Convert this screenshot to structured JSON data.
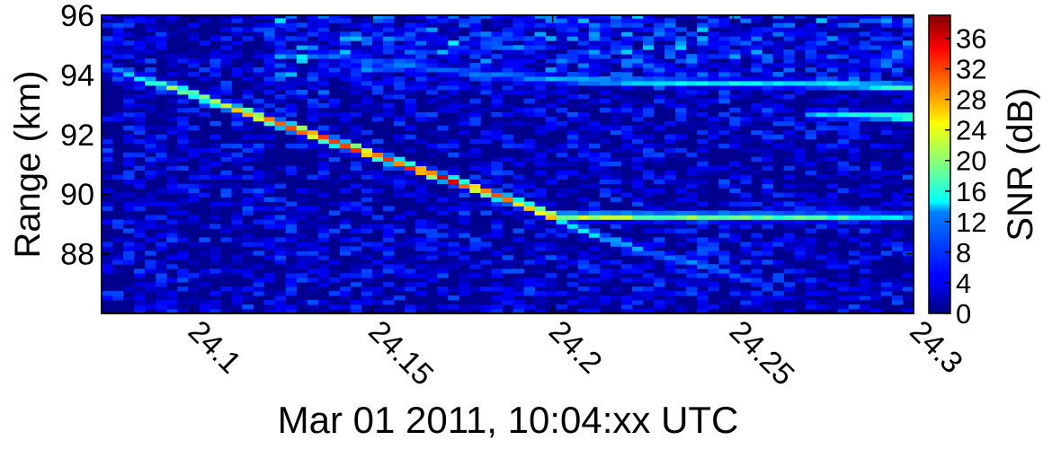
{
  "chart_data": {
    "type": "heatmap",
    "title": "",
    "xlabel": "Mar 01 2011, 10:04:xx UTC",
    "ylabel": "Range (km)",
    "xlim": [
      24.075,
      24.3
    ],
    "ylim": [
      86.0,
      96.0
    ],
    "x_ticks": [
      24.1,
      24.15,
      24.2,
      24.25,
      24.3
    ],
    "x_tick_labels": [
      "24.1",
      "24.15",
      "24.2",
      "24.25",
      "24.3"
    ],
    "y_ticks": [
      88,
      90,
      92,
      94,
      96
    ],
    "y_tick_labels": [
      "88",
      "90",
      "92",
      "94",
      "96"
    ],
    "colorbar": {
      "label": "SNR (dB)",
      "range": [
        0,
        39
      ],
      "ticks": [
        0,
        4,
        8,
        12,
        16,
        20,
        24,
        28,
        32,
        36
      ],
      "tick_labels": [
        "0",
        "4",
        "8",
        "12",
        "16",
        "20",
        "24",
        "28",
        "32",
        "36"
      ],
      "colormap": "jet"
    },
    "grid": false,
    "cell_size": {
      "time_s": 0.003,
      "range_km": 0.15
    },
    "background_snr": [
      0,
      8
    ],
    "tracks": [
      {
        "points": [
          [
            24.076,
            94.3,
            10
          ],
          [
            24.086,
            93.85,
            16
          ],
          [
            24.096,
            93.55,
            22
          ],
          [
            24.106,
            93.1,
            26
          ],
          [
            24.116,
            92.7,
            30
          ],
          [
            24.126,
            92.3,
            34
          ],
          [
            24.136,
            91.9,
            36
          ],
          [
            24.146,
            91.5,
            36
          ],
          [
            24.156,
            91.1,
            35
          ],
          [
            24.166,
            90.7,
            35
          ],
          [
            24.176,
            90.3,
            34
          ],
          [
            24.186,
            89.9,
            32
          ],
          [
            24.196,
            89.45,
            32
          ],
          [
            24.2,
            89.25,
            34
          ]
        ]
      },
      {
        "points": [
          [
            24.2,
            89.25,
            24
          ],
          [
            24.22,
            89.25,
            22
          ],
          [
            24.25,
            89.25,
            20
          ],
          [
            24.28,
            89.25,
            18
          ],
          [
            24.3,
            89.25,
            14
          ]
        ]
      },
      {
        "points": [
          [
            24.2,
            89.2,
            16
          ],
          [
            24.215,
            88.5,
            14
          ],
          [
            24.228,
            88.0,
            10
          ],
          [
            24.24,
            87.7,
            12
          ],
          [
            24.255,
            87.1,
            10
          ],
          [
            24.262,
            86.9,
            6
          ]
        ]
      },
      {
        "points": [
          [
            24.135,
            94.7,
            9
          ],
          [
            24.16,
            94.3,
            10
          ],
          [
            24.185,
            94.0,
            11
          ],
          [
            24.21,
            93.8,
            14
          ],
          [
            24.24,
            93.75,
            15
          ],
          [
            24.27,
            93.7,
            14
          ],
          [
            24.3,
            93.6,
            20
          ]
        ]
      },
      {
        "points": [
          [
            24.27,
            92.7,
            12
          ],
          [
            24.285,
            92.65,
            16
          ],
          [
            24.3,
            92.6,
            22
          ]
        ]
      }
    ]
  }
}
